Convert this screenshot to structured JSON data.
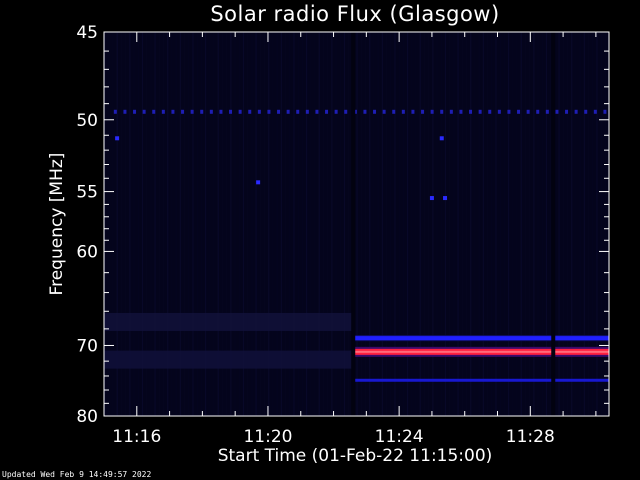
{
  "chart_data": {
    "type": "heatmap",
    "title": "Solar radio Flux (Glasgow)",
    "xlabel": "Start Time (01-Feb-22 11:15:00)",
    "ylabel": "Frequency [MHz]",
    "x_range_min": [
      0,
      15.4
    ],
    "y_range_mhz": [
      45,
      80
    ],
    "y_scale": "reciprocal",
    "x_ticks": [
      {
        "label": "11:16",
        "minutes": 1
      },
      {
        "label": "11:20",
        "minutes": 5
      },
      {
        "label": "11:24",
        "minutes": 9
      },
      {
        "label": "11:28",
        "minutes": 13
      }
    ],
    "y_ticks": [
      45,
      50,
      55,
      60,
      70,
      80
    ],
    "bands": [
      {
        "freq_mhz": 49.5,
        "start_min": 0.3,
        "end_min": 15.4,
        "intensity": "dotted-medium",
        "color": "#1e1eb4"
      },
      {
        "freq_mhz": 67.2,
        "start_min": 0.0,
        "end_min": 7.6,
        "intensity": "faint",
        "color": "#12123a"
      },
      {
        "freq_mhz": 69.1,
        "start_min": 7.6,
        "end_min": 15.4,
        "intensity": "high",
        "color": "#2020ff"
      },
      {
        "freq_mhz": 70.8,
        "start_min": 7.6,
        "end_min": 15.4,
        "intensity": "very-high",
        "color": "#ff2040"
      },
      {
        "freq_mhz": 71.8,
        "start_min": 0.0,
        "end_min": 7.6,
        "intensity": "faint",
        "color": "#10103a"
      },
      {
        "freq_mhz": 74.6,
        "start_min": 7.6,
        "end_min": 15.4,
        "intensity": "medium",
        "color": "#1818d0"
      }
    ],
    "spots": [
      {
        "freq_mhz": 51.2,
        "minute": 0.4
      },
      {
        "freq_mhz": 54.3,
        "minute": 4.7
      },
      {
        "freq_mhz": 51.2,
        "minute": 10.3
      },
      {
        "freq_mhz": 55.5,
        "minute": 10.4
      },
      {
        "freq_mhz": 55.5,
        "minute": 10.0
      }
    ],
    "gaps_min": [
      7.6,
      13.7
    ],
    "grid": false
  },
  "footer": "Updated Wed Feb  9 14:49:57 2022"
}
